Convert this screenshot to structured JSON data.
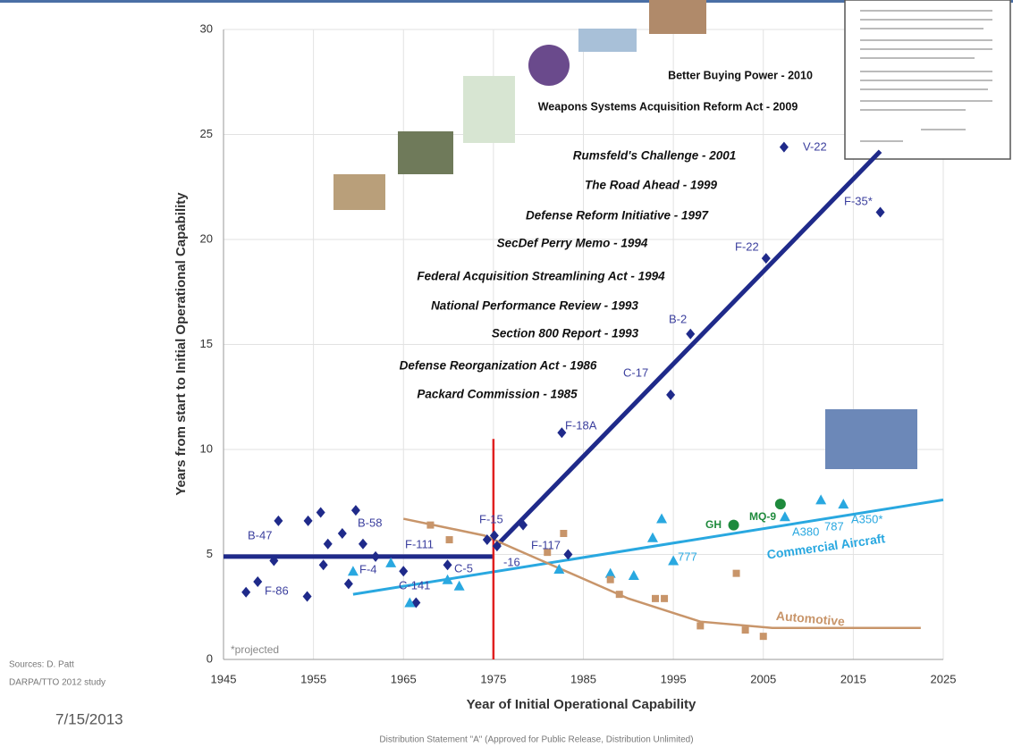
{
  "chart_data": {
    "type": "scatter",
    "x_label": "Year of Initial Operational Capability",
    "y_label": "Years from start to Initial Operational Capability",
    "xlim": [
      1945,
      2025
    ],
    "ylim": [
      0,
      30
    ],
    "xticks": [
      1945,
      1955,
      1965,
      1975,
      1985,
      1995,
      2005,
      2015,
      2025
    ],
    "yticks": [
      0,
      5,
      10,
      15,
      20,
      25,
      30
    ],
    "grid": true,
    "series": [
      {
        "marker": "diamond",
        "color": "#1f2a8a",
        "x": [
          1947.5,
          1948.8,
          1950.6,
          1951.1,
          1954.4,
          1955.8,
          1954.3,
          1956.1,
          1956.6,
          1958.2,
          1958.9,
          1959.7,
          1960.5,
          1961.9,
          1965.0,
          1966.4,
          1969.9,
          1974.3,
          1975.1,
          1975.4,
          1978.3,
          1982.6,
          1983.3,
          1994.7,
          1996.9,
          2005.3,
          2007.3,
          2018.0
        ],
        "values": [
          3.2,
          3.7,
          4.7,
          6.6,
          6.6,
          7.0,
          3.0,
          4.5,
          5.5,
          6.0,
          3.6,
          7.1,
          5.5,
          4.9,
          4.2,
          2.7,
          4.5,
          5.7,
          5.9,
          5.4,
          6.4,
          10.8,
          5.0,
          12.6,
          15.5,
          19.1,
          24.4,
          21.3
        ]
      },
      {
        "marker": "triangle",
        "color": "#29a8e0",
        "x": [
          1959.4,
          1963.6,
          1965.7,
          1969.9,
          1971.2,
          1982.3,
          1988.0,
          1990.6,
          1992.7,
          1993.7,
          1995.0,
          2007.4,
          2011.4,
          2013.9
        ],
        "values": [
          4.2,
          4.6,
          2.7,
          3.8,
          3.5,
          4.3,
          4.1,
          4.0,
          5.8,
          6.7,
          4.7,
          6.8,
          7.6,
          7.4
        ]
      },
      {
        "marker": "square",
        "color": "#c8956a",
        "x": [
          1968.0,
          1970.1,
          1982.8,
          1981.0,
          1988.0,
          1989.0,
          1993.0,
          1994.0,
          1998.0,
          2002.0,
          2003.0,
          2005.0
        ],
        "values": [
          6.4,
          5.7,
          6.0,
          5.1,
          3.8,
          3.1,
          2.9,
          2.9,
          1.6,
          4.1,
          1.4,
          1.1
        ]
      },
      {
        "marker": "circle",
        "color": "#1e8a3c",
        "x": [
          2001.7,
          2006.9
        ],
        "values": [
          6.4,
          7.4
        ]
      }
    ],
    "trend_lines": [
      {
        "color": "#1f2a8a",
        "x": [
          1945,
          1975,
          null,
          1975.3,
          2018
        ],
        "values": [
          4.9,
          4.9,
          null,
          5.4,
          24.2
        ]
      },
      {
        "name": "Commercial Aircraft",
        "color": "#29a8e0",
        "x": [
          1959.4,
          2025
        ],
        "values": [
          3.1,
          7.6
        ]
      },
      {
        "name": "Automotive",
        "color": "#c8956a",
        "x": [
          1965,
          1974,
          1982,
          1990,
          1998,
          2006,
          2022.5
        ],
        "values": [
          6.7,
          5.9,
          4.4,
          2.9,
          1.8,
          1.5,
          1.5
        ]
      }
    ],
    "reference_line": {
      "color": "#e02020",
      "x": [
        1975,
        1975
      ],
      "values": [
        0,
        10.5
      ]
    },
    "point_labels": [
      "B-47",
      "F-86",
      "F-4",
      "B-58",
      "F-111",
      "C-141",
      "C-5",
      "F-15",
      "-16",
      "F-117",
      "F-18A",
      "C-17",
      "B-2",
      "F-22",
      "V-22",
      "F-35*",
      "777",
      "A380",
      "787",
      "A350*",
      "GH",
      "MQ-9"
    ],
    "policy_events": [
      "Better Buying Power - 2010",
      "Weapons Systems Acquisition Reform Act - 2009",
      "Rumsfeld's Challenge - 2001",
      "The Road Ahead - 1999",
      "Defense Reform Initiative - 1997",
      "SecDef Perry Memo - 1994",
      "Federal Acquisition Streamlining Act - 1994",
      "National Performance Review - 1993",
      "Section 800 Report - 1993",
      "Defense Reorganization Act - 1986",
      "Packard Commission - 1985"
    ],
    "projected_note": "*projected"
  },
  "footer": {
    "sources": [
      "Sources: D. Patt",
      "DARPA/TTO 2012 study"
    ],
    "date": "7/15/2013",
    "distribution": "Distribution Statement \"A\" (Approved for Public Release, Distribution Unlimited)"
  }
}
